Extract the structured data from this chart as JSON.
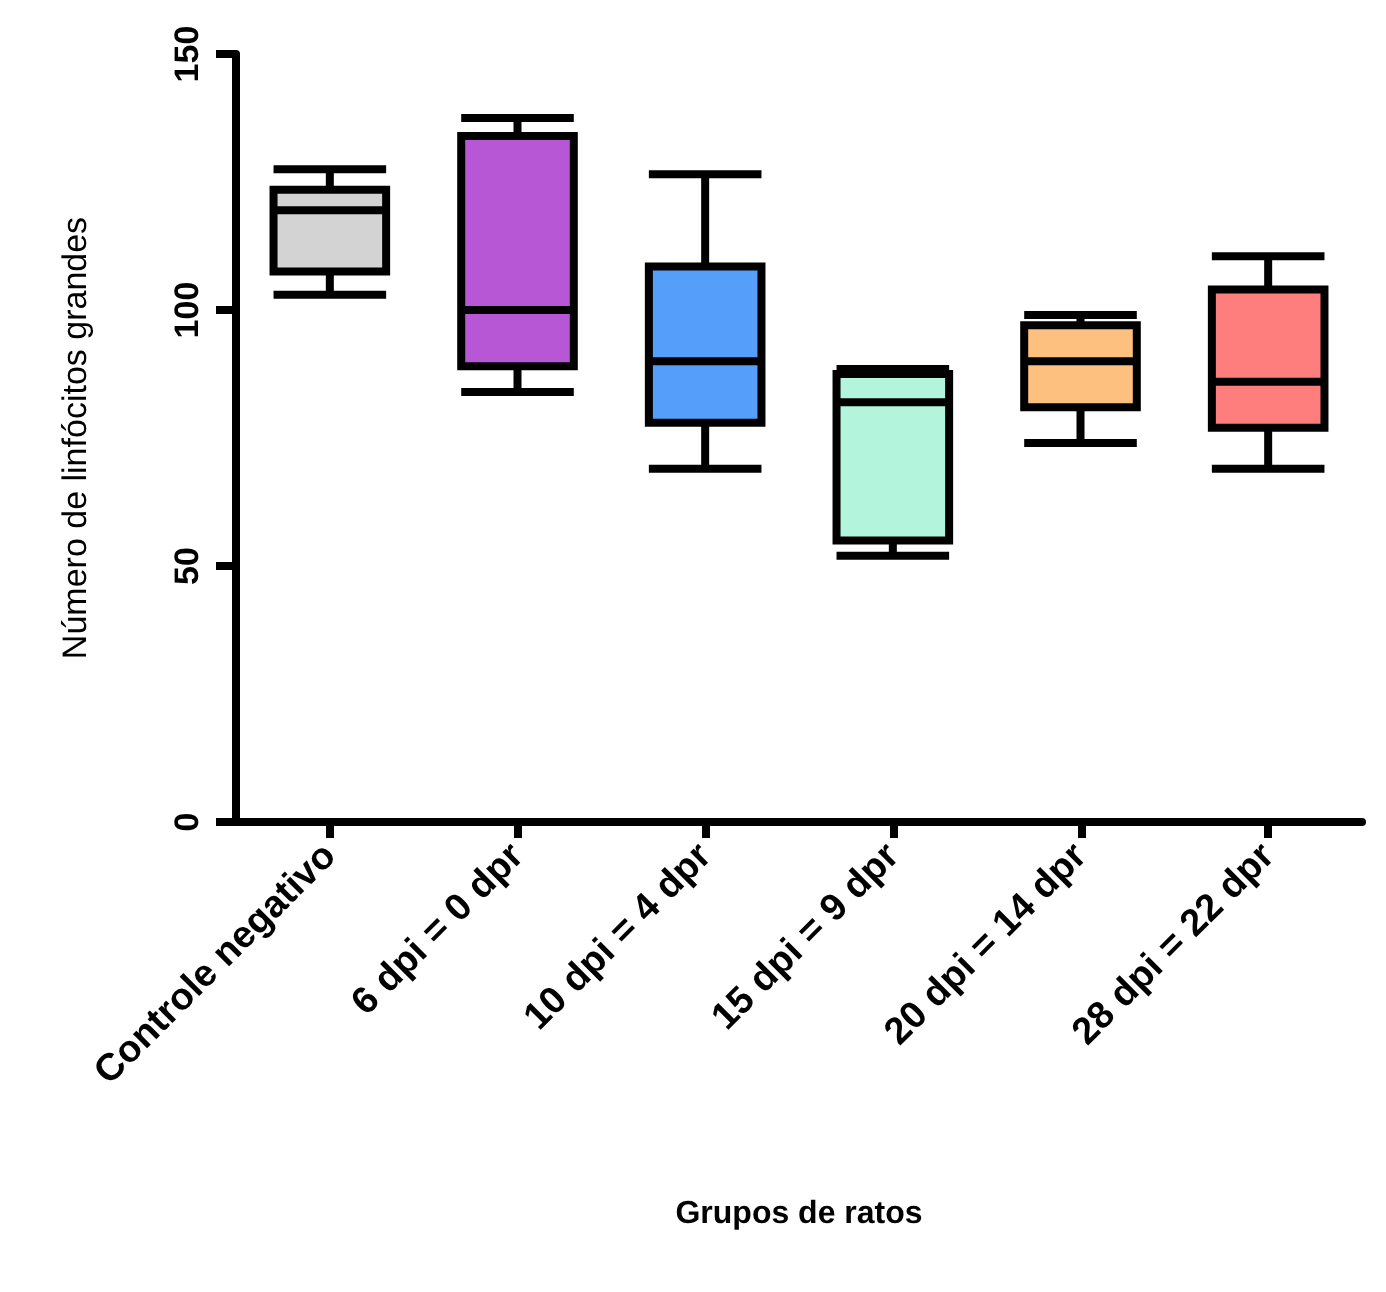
{
  "chart_data": {
    "type": "box",
    "xlabel": "Grupos de ratos",
    "ylabel": "Número de linfócitos grandes",
    "categories": [
      "Controle negativo",
      "6 dpi = 0 dpr",
      "10 dpi = 4 dpr",
      "15 dpi = 9 dpr",
      "20 dpi = 14 dpr",
      "28 dpi = 22 dpr"
    ],
    "boxes": [
      {
        "low": 103,
        "q1": 107.5,
        "median": 119.5,
        "q3": 123.5,
        "high": 127.5
      },
      {
        "low": 84,
        "q1": 89,
        "median": 100,
        "q3": 134,
        "high": 137.5
      },
      {
        "low": 69,
        "q1": 78,
        "median": 90,
        "q3": 108.5,
        "high": 126.5
      },
      {
        "low": 52,
        "q1": 55,
        "median": 82,
        "q3": 87.5,
        "high": 88.5
      },
      {
        "low": 74,
        "q1": 81,
        "median": 90,
        "q3": 97,
        "high": 99
      },
      {
        "low": 69,
        "q1": 77,
        "median": 86,
        "q3": 104,
        "high": 110.5
      }
    ],
    "colors": [
      "#d3d3d3",
      "#b857d6",
      "#559ffb",
      "#b3f5dc",
      "#fdc07f",
      "#fe7e7e"
    ],
    "ylim": [
      0,
      150
    ],
    "yticks": [
      0,
      50,
      100,
      150
    ]
  }
}
